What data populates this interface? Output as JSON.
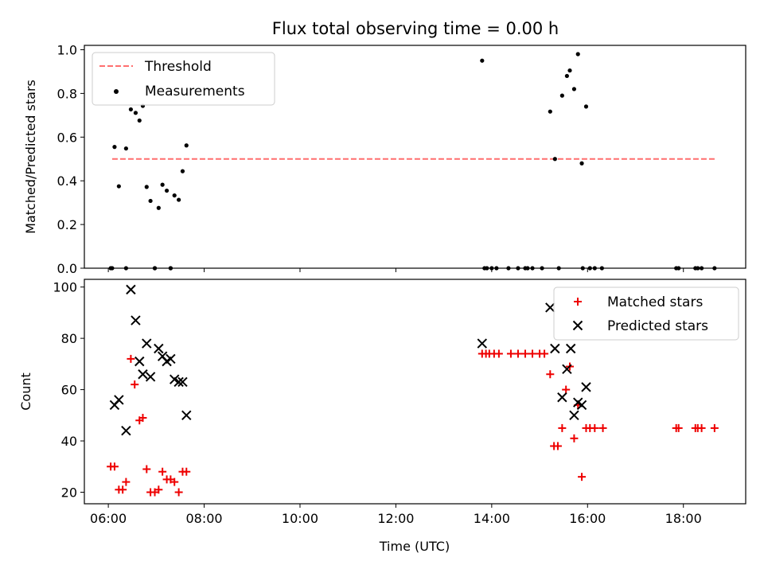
{
  "title": "Flux total observing time = 0.00 h",
  "colors": {
    "threshold": "#ff6f6f",
    "matched": "#ee0000",
    "predicted": "#000000",
    "measurement": "#000000"
  },
  "chart_data": [
    {
      "type": "scatter",
      "ylabel": "Matched/Predicted stars",
      "xlim": [
        5.5,
        19.3
      ],
      "ylim": [
        0,
        1.02
      ],
      "yticks": [
        "0.0",
        "0.2",
        "0.4",
        "0.6",
        "0.8",
        "1.0"
      ],
      "yticks_values": [
        0,
        0.2,
        0.4,
        0.6,
        0.8,
        1.0
      ],
      "legend_position": "upper-left",
      "threshold": {
        "name": "Threshold",
        "y": 0.5,
        "x_range": [
          6.08,
          18.67
        ]
      },
      "series": [
        {
          "name": "Measurements",
          "x": [
            6.05,
            6.13,
            6.22,
            6.37,
            6.47,
            6.57,
            6.65,
            6.72,
            6.8,
            6.88,
            6.97,
            7.05,
            7.13,
            7.22,
            7.3,
            7.38,
            7.47,
            7.55,
            7.63,
            6.08,
            6.37,
            6.97,
            7.3,
            13.8,
            13.85,
            13.9,
            14.0,
            14.1,
            14.35,
            14.55,
            14.7,
            14.75,
            14.85,
            15.05,
            15.22,
            15.32,
            15.47,
            15.57,
            15.63,
            15.72,
            15.8,
            15.88,
            15.97,
            15.4,
            15.9,
            16.05,
            16.15,
            16.3,
            17.85,
            17.9,
            18.25,
            18.3,
            18.38,
            18.65
          ],
          "y": [
            0.0,
            0.555,
            0.375,
            0.548,
            0.727,
            0.711,
            0.676,
            0.743,
            0.372,
            0.308,
            0.0,
            0.276,
            0.382,
            0.355,
            0.0,
            0.333,
            0.313,
            0.444,
            0.562,
            0.0,
            0.0,
            0.0,
            0.0,
            0.95,
            0.0,
            0.0,
            0.0,
            0.0,
            0.0,
            0.0,
            0.0,
            0.0,
            0.0,
            0.0,
            0.717,
            0.5,
            0.79,
            0.88,
            0.905,
            0.82,
            0.98,
            0.48,
            0.74,
            0.0,
            0.0,
            0.0,
            0.0,
            0.0,
            0.0,
            0.0,
            0.0,
            0.0,
            0.0,
            0.0
          ]
        }
      ]
    },
    {
      "type": "scatter",
      "xlabel": "Time (UTC)",
      "ylabel": "Count",
      "xlim": [
        5.5,
        19.3
      ],
      "ylim": [
        15.5,
        103
      ],
      "xticks": [
        "06:00",
        "08:00",
        "10:00",
        "12:00",
        "14:00",
        "16:00",
        "18:00"
      ],
      "xticks_values": [
        6,
        8,
        10,
        12,
        14,
        16,
        18
      ],
      "yticks": [
        "20",
        "40",
        "60",
        "80",
        "100"
      ],
      "yticks_values": [
        20,
        40,
        60,
        80,
        100
      ],
      "legend_position": "upper-right",
      "series": [
        {
          "name": "Matched stars",
          "x": [
            6.05,
            6.13,
            6.22,
            6.3,
            6.37,
            6.47,
            6.55,
            6.65,
            6.72,
            6.8,
            6.88,
            6.97,
            7.05,
            7.13,
            7.22,
            7.3,
            7.38,
            7.47,
            7.55,
            7.63,
            13.8,
            13.88,
            13.95,
            14.05,
            14.15,
            14.4,
            14.55,
            14.7,
            14.85,
            15.0,
            15.1,
            15.22,
            15.3,
            15.38,
            15.47,
            15.55,
            15.63,
            15.72,
            15.8,
            15.88,
            15.97,
            16.05,
            16.15,
            16.32,
            17.85,
            17.9,
            18.25,
            18.3,
            18.38,
            18.65
          ],
          "y": [
            30,
            30,
            21,
            21,
            24,
            72,
            62,
            48,
            49,
            29,
            20,
            20,
            21,
            28,
            25,
            25,
            24,
            20,
            28,
            28,
            74,
            74,
            74,
            74,
            74,
            74,
            74,
            74,
            74,
            74,
            74,
            66,
            38,
            38,
            45,
            60,
            69,
            41,
            54,
            26,
            45,
            45,
            45,
            45,
            45,
            45,
            45,
            45,
            45,
            45
          ]
        },
        {
          "name": "Predicted stars",
          "x": [
            6.13,
            6.22,
            6.37,
            6.47,
            6.57,
            6.65,
            6.72,
            6.8,
            6.88,
            7.05,
            7.13,
            7.22,
            7.3,
            7.38,
            7.47,
            7.55,
            7.63,
            13.8,
            15.22,
            15.32,
            15.47,
            15.57,
            15.65,
            15.72,
            15.8,
            15.88,
            15.97
          ],
          "y": [
            54,
            56,
            44,
            99,
            87,
            71,
            66,
            78,
            65,
            76,
            73,
            71,
            72,
            64,
            63,
            63,
            50,
            78,
            92,
            76,
            57,
            68,
            76,
            50,
            55,
            54,
            61
          ]
        }
      ]
    }
  ]
}
